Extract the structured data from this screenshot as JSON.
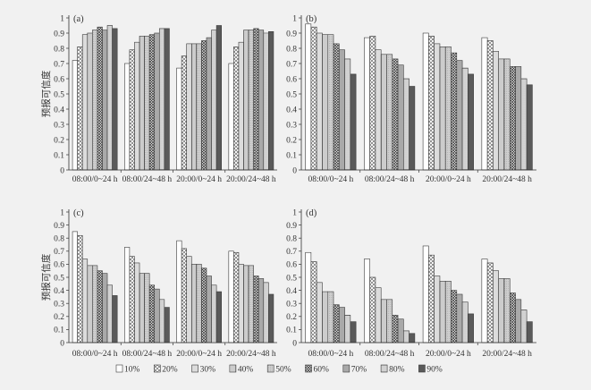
{
  "chart_data": [
    {
      "type": "bar",
      "panel_label": "(a)",
      "xlabel": "",
      "ylabel": "预报可信度",
      "ylim": [
        0,
        1
      ],
      "yticks": [
        0,
        0.1,
        0.2,
        0.3,
        0.4,
        0.5,
        0.6,
        0.7,
        0.8,
        0.9,
        1
      ],
      "ytick_labels": [
        "0",
        "0.1",
        "0.2",
        "0.3",
        "0.4",
        "0.5",
        "0.6",
        "0.7",
        "0.8",
        "0.9",
        "1"
      ],
      "grid": false,
      "categories": [
        "08:00/0~24 h",
        "08:00/24~48 h",
        "20:00/0~24 h",
        "20:00/24~48 h"
      ],
      "series": [
        {
          "values": [
            0.72,
            0.7,
            0.67,
            0.7
          ]
        },
        {
          "values": [
            0.81,
            0.79,
            0.75,
            0.81
          ]
        },
        {
          "values": [
            0.89,
            0.84,
            0.83,
            0.84
          ]
        },
        {
          "values": [
            0.9,
            0.88,
            0.83,
            0.92
          ]
        },
        {
          "values": [
            0.92,
            0.88,
            0.83,
            0.92
          ]
        },
        {
          "values": [
            0.94,
            0.89,
            0.85,
            0.93
          ]
        },
        {
          "values": [
            0.92,
            0.9,
            0.87,
            0.92
          ]
        },
        {
          "values": [
            0.95,
            0.93,
            0.92,
            0.9
          ]
        },
        {
          "values": [
            0.93,
            0.93,
            0.95,
            0.91
          ]
        }
      ]
    },
    {
      "type": "bar",
      "panel_label": "(b)",
      "xlabel": "",
      "ylabel": "",
      "ylim": [
        0,
        1
      ],
      "yticks": [
        0,
        0.1,
        0.2,
        0.3,
        0.4,
        0.5,
        0.6,
        0.7,
        0.8,
        0.9,
        1
      ],
      "ytick_labels": [
        "0",
        "0.1",
        "0.2",
        "0.3",
        "0.4",
        "0.5",
        "0.6",
        "0.7",
        "0.8",
        "0.9",
        "1"
      ],
      "grid": false,
      "categories": [
        "08:00/0~24 h",
        "08:00/24~48 h",
        "20:00/0~24 h",
        "20:00/24~48 h"
      ],
      "series": [
        {
          "values": [
            0.96,
            0.87,
            0.9,
            0.87
          ]
        },
        {
          "values": [
            0.94,
            0.88,
            0.88,
            0.85
          ]
        },
        {
          "values": [
            0.9,
            0.79,
            0.83,
            0.78
          ]
        },
        {
          "values": [
            0.89,
            0.76,
            0.81,
            0.73
          ]
        },
        {
          "values": [
            0.89,
            0.76,
            0.81,
            0.73
          ]
        },
        {
          "values": [
            0.83,
            0.73,
            0.77,
            0.68
          ]
        },
        {
          "values": [
            0.79,
            0.69,
            0.72,
            0.68
          ]
        },
        {
          "values": [
            0.73,
            0.6,
            0.67,
            0.6
          ]
        },
        {
          "values": [
            0.63,
            0.55,
            0.63,
            0.56
          ]
        }
      ]
    },
    {
      "type": "bar",
      "panel_label": "(c)",
      "xlabel": "",
      "ylabel": "预报可信度",
      "ylim": [
        0,
        1
      ],
      "yticks": [
        0,
        0.1,
        0.2,
        0.3,
        0.4,
        0.5,
        0.6,
        0.7,
        0.8,
        0.9,
        1
      ],
      "ytick_labels": [
        "0",
        "0.1",
        "0.2",
        "0.3",
        "0.4",
        "0.5",
        "0.6",
        "0.7",
        "0.8",
        "0.9",
        "1"
      ],
      "grid": false,
      "categories": [
        "08:00/0~24 h",
        "08:00/24~48 h",
        "20:00/0~24 h",
        "20:00/24~48 h"
      ],
      "series": [
        {
          "values": [
            0.85,
            0.73,
            0.78,
            0.7
          ]
        },
        {
          "values": [
            0.82,
            0.66,
            0.72,
            0.69
          ]
        },
        {
          "values": [
            0.64,
            0.61,
            0.66,
            0.6
          ]
        },
        {
          "values": [
            0.59,
            0.53,
            0.6,
            0.59
          ]
        },
        {
          "values": [
            0.59,
            0.53,
            0.6,
            0.59
          ]
        },
        {
          "values": [
            0.55,
            0.44,
            0.57,
            0.51
          ]
        },
        {
          "values": [
            0.53,
            0.41,
            0.51,
            0.49
          ]
        },
        {
          "values": [
            0.44,
            0.33,
            0.44,
            0.46
          ]
        },
        {
          "values": [
            0.36,
            0.27,
            0.39,
            0.37
          ]
        }
      ]
    },
    {
      "type": "bar",
      "panel_label": "(d)",
      "xlabel": "",
      "ylabel": "",
      "ylim": [
        0,
        1
      ],
      "yticks": [
        0,
        0.1,
        0.2,
        0.3,
        0.4,
        0.5,
        0.6,
        0.7,
        0.8,
        0.9,
        1
      ],
      "ytick_labels": [
        "0",
        "0.1",
        "0.2",
        "0.3",
        "0.4",
        "0.5",
        "0.6",
        "0.7",
        "0.8",
        "0.9",
        "1"
      ],
      "grid": false,
      "categories": [
        "08:00/0~24 h",
        "08:00/24~48 h",
        "20:00/0~24 h",
        "20:00/24~48 h"
      ],
      "series": [
        {
          "values": [
            0.69,
            0.64,
            0.74,
            0.64
          ]
        },
        {
          "values": [
            0.62,
            0.5,
            0.67,
            0.61
          ]
        },
        {
          "values": [
            0.46,
            0.42,
            0.51,
            0.55
          ]
        },
        {
          "values": [
            0.39,
            0.33,
            0.47,
            0.49
          ]
        },
        {
          "values": [
            0.39,
            0.33,
            0.47,
            0.49
          ]
        },
        {
          "values": [
            0.29,
            0.21,
            0.4,
            0.38
          ]
        },
        {
          "values": [
            0.27,
            0.18,
            0.37,
            0.33
          ]
        },
        {
          "values": [
            0.21,
            0.09,
            0.31,
            0.25
          ]
        },
        {
          "values": [
            0.16,
            0.07,
            0.22,
            0.16
          ]
        }
      ]
    }
  ],
  "legend": {
    "placement": "bottom",
    "items": [
      "10%",
      "20%",
      "30%",
      "40%",
      "50%",
      "60%",
      "70%",
      "80%",
      "90%"
    ]
  }
}
